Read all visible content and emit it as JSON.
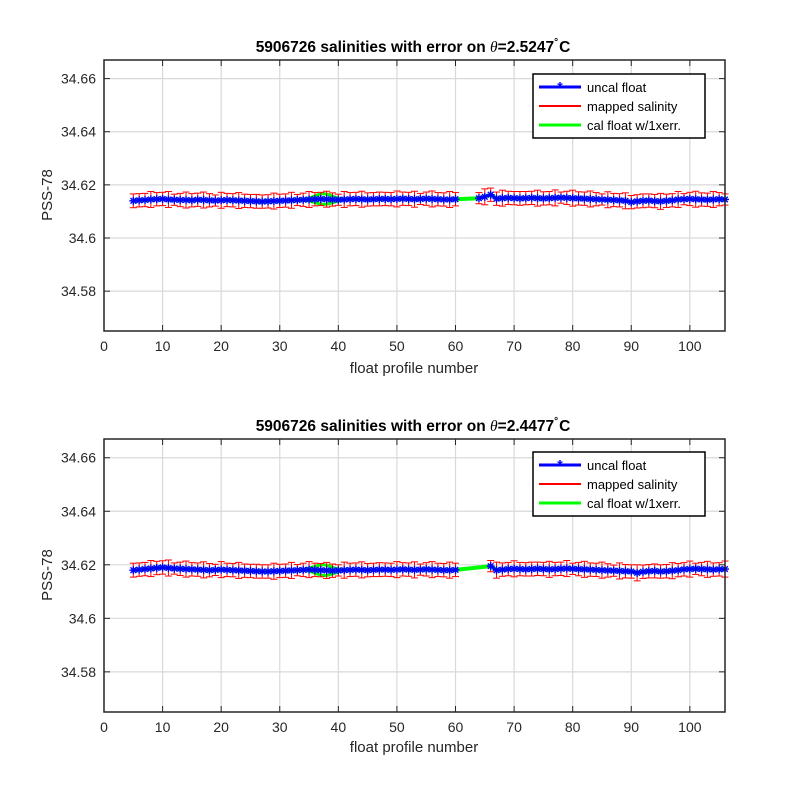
{
  "figure": {
    "xlabel": "float profile number",
    "ylabel": "PSS-78",
    "legend": {
      "placement": "top-right",
      "entries": [
        {
          "label": "uncal float",
          "color": "#0000ff",
          "marker": "asterisk"
        },
        {
          "label": "mapped salinity",
          "color": "#ff0000",
          "marker": "errorbar"
        },
        {
          "label": "cal float w/1xerr.",
          "color": "#00ff00",
          "marker": "line"
        }
      ]
    },
    "colors": {
      "uncal": "#0000ff",
      "mapped": "#ff0000",
      "cal": "#00ff00",
      "grid": "#d9d9d9",
      "axis": "#262626"
    }
  },
  "chart_data": [
    {
      "type": "line",
      "title": "5906726 salinities with error on θ=2.5247°C",
      "title_parts": {
        "prefix": "5906726 salinities with error on ",
        "symbol": "θ",
        "value": "=2.5247",
        "degree": "°",
        "unit": "C"
      },
      "xlabel": "float profile number",
      "ylabel": "PSS-78",
      "xlim": [
        0,
        106
      ],
      "ylim": [
        34.565,
        34.667
      ],
      "xticks": [
        0,
        10,
        20,
        30,
        40,
        50,
        60,
        70,
        80,
        90,
        100
      ],
      "yticks": [
        34.58,
        34.6,
        34.62,
        34.64,
        34.66
      ],
      "ytick_labels": [
        "34.58",
        "34.6",
        "34.62",
        "34.64",
        "34.66"
      ],
      "grid": true,
      "profile_range": [
        5,
        106
      ],
      "gap_profiles": [
        61,
        62,
        63
      ],
      "series": [
        {
          "name": "uncal float",
          "profiles_from": 5,
          "values_by_segment": [
            {
              "from": 5,
              "to": 60,
              "values": [
                34.614,
                34.6142,
                34.6143,
                34.6145,
                34.6146,
                34.6147,
                34.6145,
                34.6144,
                34.6143,
                34.6143,
                34.6142,
                34.6144,
                34.6143,
                34.6142,
                34.6141,
                34.6142,
                34.6143,
                34.6142,
                34.6141,
                34.614,
                34.6139,
                34.6138,
                34.6137,
                34.6138,
                34.6139,
                34.614,
                34.6141,
                34.6142,
                34.6143,
                34.6144,
                34.6145,
                34.6146,
                34.6147,
                34.6146,
                34.6145,
                34.6144,
                34.6145,
                34.6146,
                34.6147,
                34.6146,
                34.6145,
                34.6146,
                34.6147,
                34.6147,
                34.6146,
                34.6147,
                34.6148,
                34.6147,
                34.6146,
                34.6147,
                34.6148,
                34.6147,
                34.6146,
                34.6145,
                34.6145,
                34.6146
              ]
            },
            {
              "from": 64,
              "to": 106,
              "values": [
                34.615,
                34.6155,
                34.6163,
                34.6148,
                34.615,
                34.6151,
                34.615,
                34.6149,
                34.615,
                34.6151,
                34.615,
                34.6149,
                34.615,
                34.6151,
                34.6152,
                34.6151,
                34.615,
                34.6149,
                34.6148,
                34.6147,
                34.6146,
                34.6145,
                34.6144,
                34.6143,
                34.6142,
                34.614,
                34.6135,
                34.6138,
                34.614,
                34.6141,
                34.6139,
                34.6138,
                34.614,
                34.6142,
                34.6145,
                34.6146,
                34.6147,
                34.6146,
                34.6145,
                34.6144,
                34.6145,
                34.6146,
                34.6145
              ]
            }
          ]
        },
        {
          "name": "mapped salinity",
          "errorbar_halfwidth": 0.0025
        },
        {
          "name": "cal float w/1xerr.",
          "bump_center": 37.5,
          "bump_halfwidth": 0.002
        }
      ]
    },
    {
      "type": "line",
      "title": "5906726 salinities with error on θ=2.4477°C",
      "title_parts": {
        "prefix": "5906726 salinities with error on ",
        "symbol": "θ",
        "value": "=2.4477",
        "degree": "°",
        "unit": "C"
      },
      "xlabel": "float profile number",
      "ylabel": "PSS-78",
      "xlim": [
        0,
        106
      ],
      "ylim": [
        34.565,
        34.667
      ],
      "xticks": [
        0,
        10,
        20,
        30,
        40,
        50,
        60,
        70,
        80,
        90,
        100
      ],
      "yticks": [
        34.58,
        34.6,
        34.62,
        34.64,
        34.66
      ],
      "ytick_labels": [
        "34.58",
        "34.6",
        "34.62",
        "34.64",
        "34.66"
      ],
      "grid": true,
      "profile_range": [
        5,
        106
      ],
      "gap_profiles": [
        61,
        62,
        63,
        64,
        65
      ],
      "series": [
        {
          "name": "uncal float",
          "profiles_from": 5,
          "values_by_segment": [
            {
              "from": 5,
              "to": 60,
              "values": [
                34.618,
                34.6182,
                34.6184,
                34.6186,
                34.6188,
                34.619,
                34.6188,
                34.6186,
                34.6185,
                34.6184,
                34.6183,
                34.6182,
                34.6181,
                34.618,
                34.6181,
                34.6182,
                34.6181,
                34.618,
                34.6179,
                34.6178,
                34.6177,
                34.6176,
                34.6175,
                34.6175,
                34.6176,
                34.6177,
                34.6178,
                34.6179,
                34.618,
                34.6181,
                34.6182,
                34.6181,
                34.618,
                34.6179,
                34.6178,
                34.6179,
                34.618,
                34.6181,
                34.6182,
                34.6181,
                34.618,
                34.6181,
                34.6182,
                34.6182,
                34.6181,
                34.6182,
                34.6183,
                34.6182,
                34.6181,
                34.6182,
                34.6183,
                34.6182,
                34.6181,
                34.618,
                34.618,
                34.6181
              ]
            },
            {
              "from": 66,
              "to": 106,
              "values": [
                34.6195,
                34.618,
                34.6182,
                34.6184,
                34.6185,
                34.6184,
                34.6183,
                34.6184,
                34.6185,
                34.6184,
                34.6183,
                34.6184,
                34.6185,
                34.6186,
                34.6185,
                34.6184,
                34.6183,
                34.6182,
                34.6181,
                34.618,
                34.6179,
                34.6178,
                34.6177,
                34.6176,
                34.6175,
                34.617,
                34.6174,
                34.6176,
                34.6177,
                34.6175,
                34.6176,
                34.6178,
                34.618,
                34.6183,
                34.6184,
                34.6185,
                34.6184,
                34.6183,
                34.6182,
                34.6183,
                34.6184
              ]
            }
          ]
        },
        {
          "name": "mapped salinity",
          "errorbar_halfwidth": 0.0025
        },
        {
          "name": "cal float w/1xerr.",
          "bump_center": 37.5,
          "bump_halfwidth": 0.002
        }
      ]
    }
  ]
}
